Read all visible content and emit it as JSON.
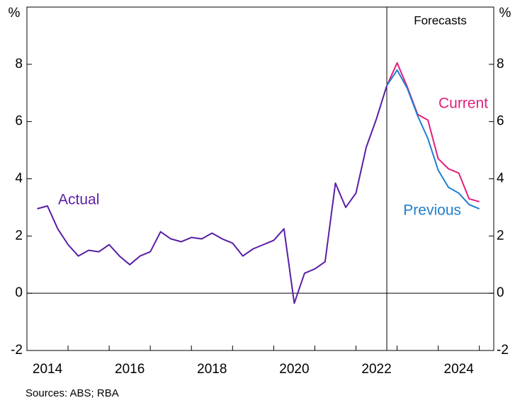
{
  "chart_data": {
    "type": "line",
    "ylabel": "%",
    "source": "Sources: ABS; RBA",
    "annotation": {
      "text": "Forecasts",
      "x": 2022.75
    },
    "xlim": [
      2014,
      2025.35
    ],
    "xticks": [
      {
        "value": 2014.5,
        "label": "2014"
      },
      {
        "value": 2016.5,
        "label": "2016"
      },
      {
        "value": 2018.5,
        "label": "2018"
      },
      {
        "value": 2020.5,
        "label": "2020"
      },
      {
        "value": 2022.5,
        "label": "2022"
      },
      {
        "value": 2024.5,
        "label": "2024"
      }
    ],
    "xminor_ticks": [
      2015,
      2016,
      2017,
      2018,
      2019,
      2020,
      2021,
      2022,
      2023,
      2024,
      2025
    ],
    "ylim": [
      -2,
      10
    ],
    "yticks": [
      -2,
      0,
      2,
      4,
      6,
      8
    ],
    "series": [
      {
        "name": "Actual",
        "color": "#5a1ea6",
        "x": [
          2014.25,
          2014.5,
          2014.75,
          2015,
          2015.25,
          2015.5,
          2015.75,
          2016,
          2016.25,
          2016.5,
          2016.75,
          2017,
          2017.25,
          2017.5,
          2017.75,
          2018,
          2018.25,
          2018.5,
          2018.75,
          2019,
          2019.25,
          2019.5,
          2019.75,
          2020,
          2020.25,
          2020.5,
          2020.75,
          2021,
          2021.25,
          2021.5,
          2021.75,
          2022,
          2022.25,
          2022.5,
          2022.75
        ],
        "values": [
          2.95,
          3.05,
          2.25,
          1.7,
          1.3,
          1.5,
          1.45,
          1.7,
          1.3,
          1.0,
          1.3,
          1.45,
          2.15,
          1.9,
          1.8,
          1.95,
          1.9,
          2.1,
          1.9,
          1.75,
          1.3,
          1.55,
          1.7,
          1.85,
          2.25,
          -0.35,
          0.7,
          0.85,
          1.1,
          3.85,
          3.0,
          3.5,
          5.1,
          6.1,
          7.25
        ]
      },
      {
        "name": "Current",
        "color": "#e0207f",
        "x": [
          2022.75,
          2023,
          2023.25,
          2023.5,
          2023.75,
          2024,
          2024.25,
          2024.5,
          2024.75,
          2025
        ],
        "values": [
          7.25,
          8.05,
          7.2,
          6.25,
          6.05,
          4.7,
          4.35,
          4.2,
          3.3,
          3.2
        ]
      },
      {
        "name": "Previous",
        "color": "#1f7fd0",
        "x": [
          2022.75,
          2023,
          2023.25,
          2023.5,
          2023.75,
          2024,
          2024.25,
          2024.5,
          2024.75,
          2025
        ],
        "values": [
          7.25,
          7.8,
          7.15,
          6.2,
          5.4,
          4.3,
          3.7,
          3.5,
          3.1,
          2.95
        ]
      }
    ]
  }
}
